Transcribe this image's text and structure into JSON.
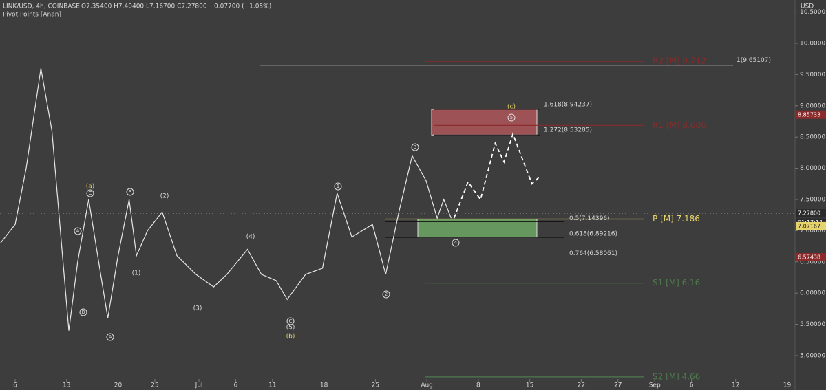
{
  "chart_data": {
    "type": "line",
    "title": "LINK/USD, 4h, COINBASE",
    "subtitle": "O7.35400 H7.40400 L7.16700 C7.27800 −0.07700 (−1.05%)",
    "indicator": "Pivot Points [Anan]",
    "y_axis_label": "USD",
    "xlim": [
      -2.06,
      106.08
    ],
    "ylim": [
      4.449,
      10.694
    ],
    "xticks": [
      {
        "value": 0,
        "label": "6"
      },
      {
        "value": 7,
        "label": "13"
      },
      {
        "value": 14,
        "label": "20"
      },
      {
        "value": 19,
        "label": "25"
      },
      {
        "value": 25,
        "label": "Jul"
      },
      {
        "value": 30,
        "label": "6"
      },
      {
        "value": 35,
        "label": "11"
      },
      {
        "value": 42,
        "label": "18"
      },
      {
        "value": 49,
        "label": "25"
      },
      {
        "value": 56,
        "label": "Aug"
      },
      {
        "value": 63,
        "label": "8"
      },
      {
        "value": 70,
        "label": "15"
      },
      {
        "value": 77,
        "label": "22"
      },
      {
        "value": 82,
        "label": "27"
      },
      {
        "value": 87,
        "label": "Sep"
      },
      {
        "value": 92,
        "label": "6"
      },
      {
        "value": 98,
        "label": "12"
      },
      {
        "value": 105,
        "label": "19"
      }
    ],
    "yticks": [
      {
        "value": 5,
        "label": "5.00000"
      },
      {
        "value": 5.5,
        "label": "5.50000"
      },
      {
        "value": 6,
        "label": "6.00000"
      },
      {
        "value": 6.5,
        "label": "6.50000"
      },
      {
        "value": 7,
        "label": "7.00000"
      },
      {
        "value": 7.5,
        "label": "7.50000"
      },
      {
        "value": 8,
        "label": "8.00000"
      },
      {
        "value": 8.5,
        "label": "8.50000"
      },
      {
        "value": 9,
        "label": "9.00000"
      },
      {
        "value": 9.5,
        "label": "9.50000"
      },
      {
        "value": 10,
        "label": "10.00000"
      },
      {
        "value": 10.5,
        "label": "10.50000"
      }
    ],
    "series": [
      {
        "color": "#e8e8e8",
        "x": [
          -2,
          0,
          1.5,
          3.5,
          5,
          7.3,
          8.5,
          10,
          11.5,
          12.6,
          14,
          15.5,
          16.5,
          18,
          20,
          22,
          24.6,
          27,
          28.8,
          31.6,
          33.5,
          35.5,
          37,
          39.5,
          41.8,
          43.8,
          45.8,
          48.6,
          50.4,
          52.2,
          54,
          55.9,
          57.4,
          58.3,
          59.3
        ],
        "values": [
          6.8,
          7.1,
          8.0,
          9.6,
          8.6,
          5.4,
          6.5,
          7.5,
          6.4,
          5.6,
          6.6,
          7.5,
          6.6,
          7.0,
          7.3,
          6.6,
          6.3,
          6.1,
          6.3,
          6.7,
          6.3,
          6.2,
          5.9,
          6.3,
          6.4,
          7.6,
          6.9,
          7.1,
          6.3,
          7.3,
          8.2,
          7.8,
          7.2,
          7.5,
          7.2
        ]
      },
      {
        "color": "#ffffff",
        "dashed": true,
        "x": [
          59.7,
          61.6,
          63.3,
          65.3,
          66.5,
          67.7,
          70.3,
          71.2
        ],
        "values": [
          7.2,
          7.78,
          7.5,
          8.4,
          8.1,
          8.55,
          7.75,
          7.85
        ]
      }
    ],
    "levels": [
      {
        "label": "R2 [M] 9.712",
        "value": 9.712,
        "color": "#8b2a2a"
      },
      {
        "label": "R1 [M] 8.686",
        "value": 8.686,
        "color": "#8b2a2a"
      },
      {
        "label": "P [M] 7.186",
        "value": 7.186,
        "color": "#e6d36a"
      },
      {
        "label": "S1 [M] 6.16",
        "value": 6.16,
        "color": "#4e7a4e"
      },
      {
        "label": "S2 [M] 4.66",
        "value": 4.66,
        "color": "#4e7a4e"
      }
    ],
    "fib_levels": [
      {
        "label": "1(9.65107)",
        "value": 9.65107
      },
      {
        "label": "1.618(8.94237)",
        "value": 8.94237
      },
      {
        "label": "1.272(8.53285)",
        "value": 8.53285
      },
      {
        "label": "0.5(7.14396)",
        "value": 7.14396
      },
      {
        "label": "0.618(6.89216)",
        "value": 6.89216
      },
      {
        "label": "0.764(6.58061)",
        "value": 6.58061
      }
    ],
    "price_tags": [
      {
        "label": "8.85733",
        "value": 8.85733,
        "color": "#8b2a2a"
      },
      {
        "label": "7.27800",
        "value": 7.278,
        "color": "#2a2a2a"
      },
      {
        "label": "01:17:14",
        "value": 7.13,
        "color": "#2a2a2a"
      },
      {
        "label": "7.07167",
        "value": 7.07167,
        "color": "#e6d36a"
      },
      {
        "label": "6.57438",
        "value": 6.57438,
        "color": "#8b2a2a"
      }
    ],
    "annotations": [
      "(a)",
      "C",
      "B",
      "(2)",
      "(1)",
      "(3)",
      "(4)",
      "A",
      "B",
      "C",
      "(5)",
      "(b)",
      "A",
      "1",
      "2",
      "3",
      "4",
      "5",
      "(c)"
    ]
  }
}
